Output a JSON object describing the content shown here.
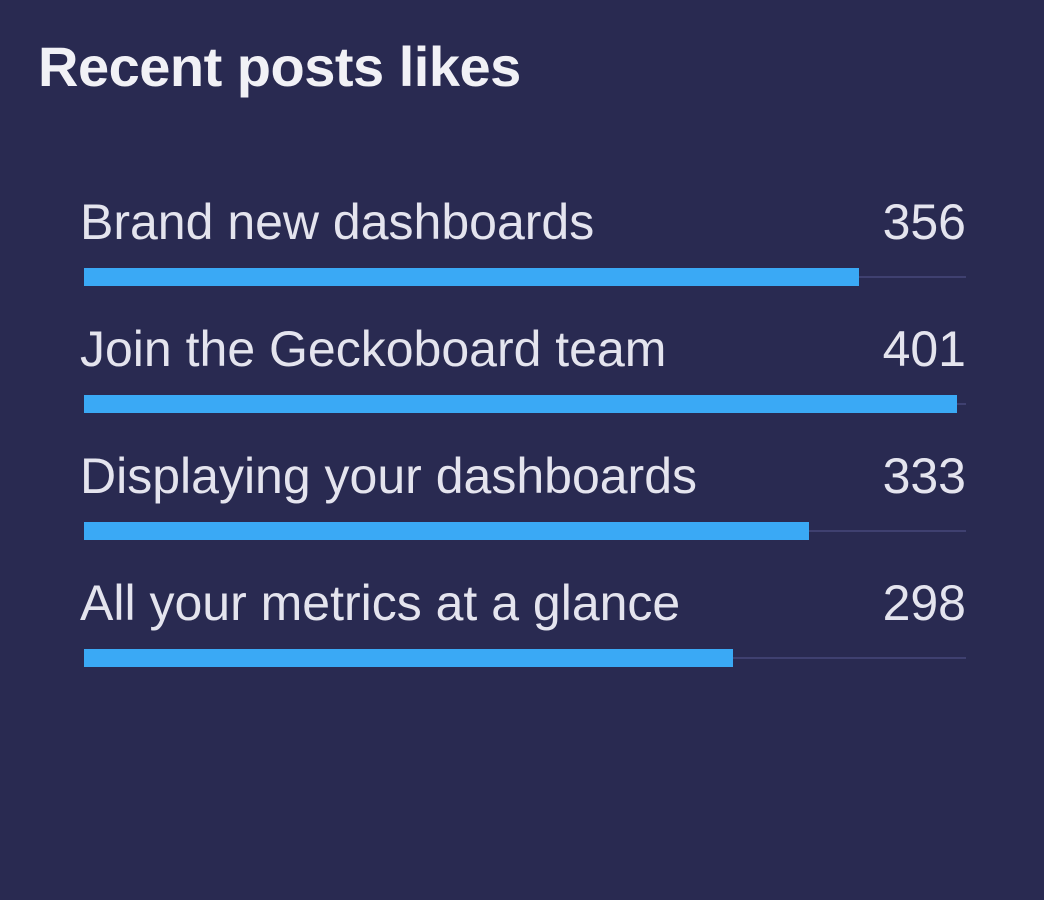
{
  "widget": {
    "title": "Recent posts likes"
  },
  "colors": {
    "background": "#292a51",
    "bar": "#3aa9f5",
    "track": "#3f4070",
    "text": "#e4e4ee"
  },
  "chart_data": {
    "type": "bar",
    "orientation": "horizontal",
    "title": "Recent posts likes",
    "categories": [
      "Brand new dashboards",
      "Join the Geckoboard team",
      "Displaying your dashboards",
      "All your metrics at a glance"
    ],
    "values": [
      356,
      401,
      333,
      298
    ],
    "value_labels": [
      "356",
      "401",
      "333",
      "298"
    ],
    "xlim": [
      0,
      405
    ],
    "grid": false,
    "legend": "none"
  }
}
